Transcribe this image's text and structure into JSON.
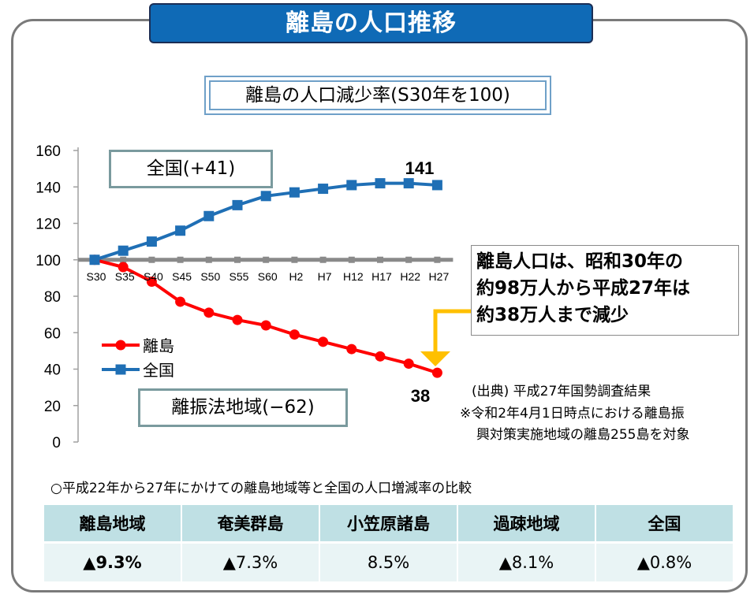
{
  "header": {
    "title": "離島の人口推移"
  },
  "subtitle": "離島の人口減少率(S30年を100)",
  "chart_data": {
    "type": "line",
    "categories": [
      "S30",
      "S35",
      "S40",
      "S45",
      "S50",
      "S55",
      "S60",
      "H2",
      "H7",
      "H12",
      "H17",
      "H22",
      "H27"
    ],
    "series": [
      {
        "name": "離島",
        "color": "#ff0000",
        "values": [
          100,
          96,
          88,
          77,
          71,
          67,
          64,
          59,
          55,
          51,
          47,
          43,
          38
        ]
      },
      {
        "name": "全国",
        "color": "#1f6fb5",
        "values": [
          100,
          105,
          110,
          116,
          124,
          130,
          135,
          137,
          139,
          141,
          142,
          142,
          141
        ]
      }
    ],
    "baseline": {
      "value": 100,
      "color": "#8a8a8a"
    },
    "ylim": [
      0,
      160
    ],
    "yticks": [
      0,
      20,
      40,
      60,
      80,
      100,
      120,
      140,
      160
    ],
    "end_labels": {
      "national": "141",
      "remote": "38"
    },
    "legend": {
      "position": "left-middle",
      "items": [
        "離島",
        "全国"
      ]
    },
    "grid": false
  },
  "annotations": {
    "national_tag": "全国(+41)",
    "remote_tag": "離振法地域(−62)",
    "note_lines": [
      "離島人口は、昭和30年の",
      "約98万人から平成27年は",
      "約38万人まで減少"
    ],
    "arrow_color": "#ffc000"
  },
  "source": {
    "line1": "(出典) 平成27年国勢調査結果",
    "line2": "※令和2年4月1日時点における離島振",
    "line3": "興対策実施地域の離島255島を対象"
  },
  "comparison": {
    "heading": "○平成22年から27年にかけての離島地域等と全国の人口増減率の比較",
    "columns": [
      "離島地域",
      "奄美群島",
      "小笠原諸島",
      "過疎地域",
      "全国"
    ],
    "values": [
      "▲9.3%",
      "▲7.3%",
      "8.5%",
      "▲8.1%",
      "▲0.8%"
    ]
  }
}
